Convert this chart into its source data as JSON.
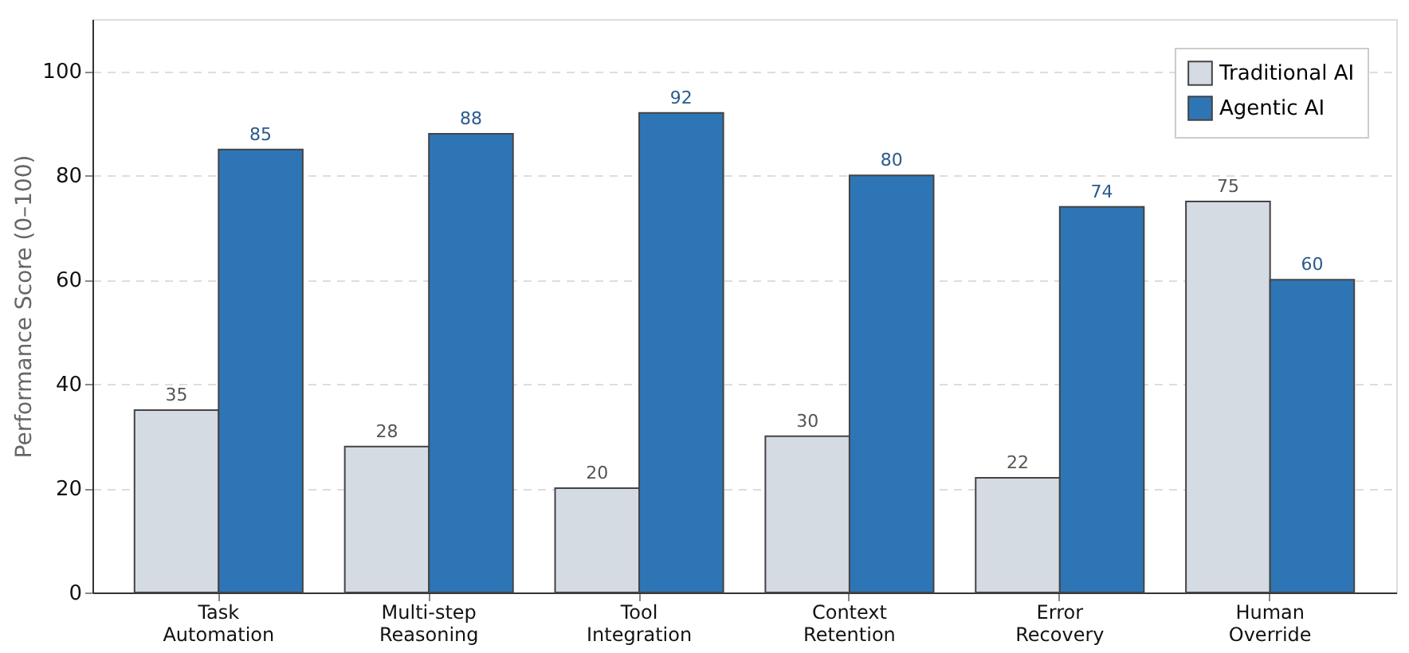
{
  "chart_data": {
    "type": "bar",
    "ylabel": "Performance Score (0–100)",
    "categories": [
      "Task Automation",
      "Multi-step Reasoning",
      "Tool Integration",
      "Context Retention",
      "Error Recovery",
      "Human Override"
    ],
    "series": [
      {
        "name": "Traditional AI",
        "color": "#d5dbe3",
        "values": [
          35,
          28,
          20,
          30,
          22,
          75
        ]
      },
      {
        "name": "Agentic AI",
        "color": "#2e75b6",
        "values": [
          85,
          88,
          92,
          80,
          74,
          60
        ]
      }
    ],
    "ylim": [
      0,
      110
    ],
    "yticks": [
      0,
      20,
      40,
      60,
      80,
      100
    ],
    "grid": "y",
    "legend": "top right",
    "data_labels": true
  }
}
